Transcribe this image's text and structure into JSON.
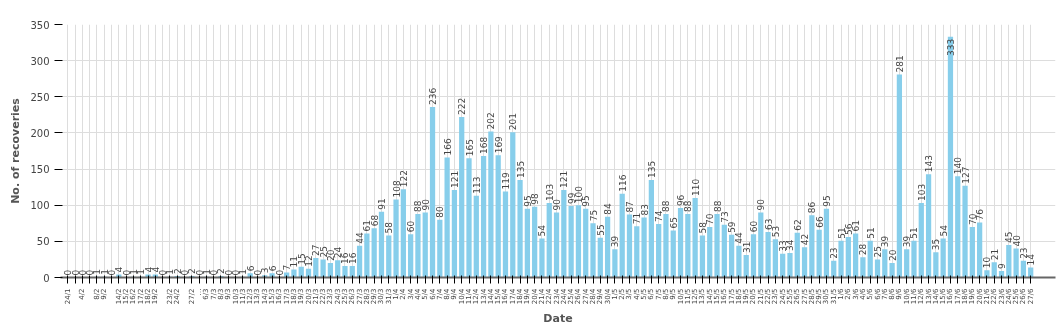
{
  "chart_data": {
    "type": "bar",
    "xlabel": "Date",
    "ylabel": "No. of recoveries",
    "color": "#87ceeb",
    "categories": [
      "24/1",
      null,
      "4/2",
      null,
      "8/2",
      "9/2",
      null,
      "14/2",
      "15/2",
      "16/2",
      "17/2",
      "18/2",
      "19/2",
      null,
      "23/2",
      "24/2",
      null,
      "27/2",
      "…",
      "6/3",
      "7/3",
      "8/3",
      "9/3",
      "10/3",
      "11/3",
      "12/3",
      "13/3",
      "14/3",
      "15/3",
      "16/3",
      "17/3",
      "18/3",
      "19/3",
      "20/3",
      "21/3",
      "22/3",
      "23/3",
      "24/3",
      "25/3",
      "26/3",
      "27/3",
      "28/3",
      "29/3",
      "30/3",
      "31/3",
      "1/4",
      "2/4",
      "3/4",
      "4/4",
      "5/4",
      "6/4",
      "7/4",
      "8/4",
      "9/4",
      "10/4",
      "11/4",
      "12/4",
      "13/4",
      "14/4",
      "15/4",
      "16/4",
      "17/4",
      "18/4",
      "19/4",
      "20/4",
      "21/4",
      "22/4",
      "23/4",
      "24/4",
      "25/4",
      "26/4",
      "27/4",
      "28/4",
      "29/4",
      "30/4",
      "1/5",
      "2/5",
      "3/5",
      "4/5",
      "5/5",
      "6/5",
      "7/5",
      "8/5",
      "9/5",
      "10/5",
      "11/5",
      "12/5",
      "13/5",
      "14/5",
      "15/5",
      "16/5",
      "17/5",
      "18/5",
      "19/5",
      "20/5",
      "21/5",
      "22/5",
      "23/5",
      "24/5",
      "25/5",
      "26/5",
      "27/5",
      "28/5",
      "29/5",
      "30/5",
      "31/5",
      "1/6",
      "2/6",
      "3/6",
      "4/6",
      "5/6",
      "6/6",
      "7/6",
      "8/6",
      "9/6",
      "10/6",
      "11/6",
      "12/6",
      "13/6",
      "14/6",
      "15/6",
      "16/6",
      "17/6",
      "18/6",
      "19/6",
      "20/6",
      "21/6",
      "22/6",
      "23/6",
      "24/6",
      "25/6",
      "26/6",
      "27/6"
    ],
    "values": [
      0,
      0,
      0,
      0,
      1,
      1,
      0,
      4,
      0,
      1,
      1,
      4,
      4,
      0,
      1,
      2,
      0,
      2,
      0,
      1,
      0,
      2,
      0,
      0,
      1,
      6,
      0,
      3,
      6,
      0,
      7,
      11,
      15,
      12,
      27,
      25,
      20,
      24,
      16,
      16,
      44,
      61,
      68,
      91,
      58,
      108,
      122,
      60,
      88,
      90,
      236,
      80,
      166,
      121,
      222,
      165,
      113,
      168,
      202,
      169,
      119,
      201,
      135,
      95,
      98,
      54,
      103,
      90,
      121,
      99,
      100,
      95,
      75,
      55,
      84,
      39,
      116,
      87,
      71,
      83,
      135,
      74,
      88,
      65,
      96,
      88,
      110,
      58,
      70,
      88,
      73,
      59,
      44,
      31,
      60,
      90,
      63,
      53,
      33,
      34,
      62,
      42,
      86,
      66,
      95,
      23,
      51,
      56,
      61,
      28,
      51,
      25,
      39,
      20,
      281,
      39,
      51,
      103,
      143,
      35,
      54,
      333,
      140,
      127,
      70,
      76,
      10,
      21,
      9,
      45,
      40,
      23,
      14
    ],
    "ylim": [
      0,
      350
    ],
    "yticks": [
      0,
      50,
      100,
      150,
      200,
      250,
      300,
      350
    ],
    "grid": true,
    "data_labels": true
  }
}
